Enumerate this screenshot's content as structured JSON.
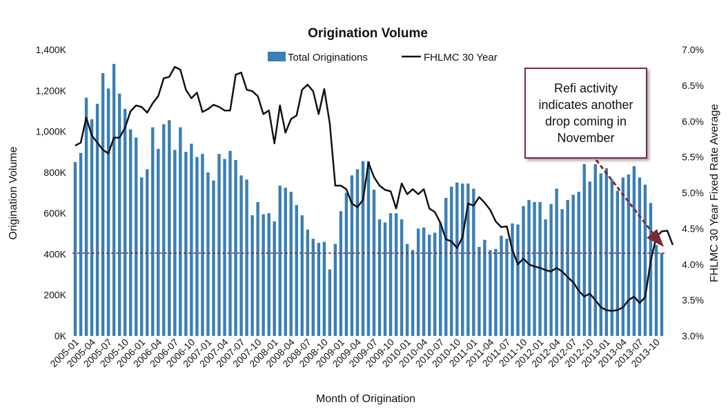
{
  "chart_data": {
    "type": "bar",
    "title": "Origination Volume",
    "xlabel": "Month of Origination",
    "ylabel": "Origination Volume",
    "y2label": "FHLMC 30 Year Fixed  Rate Average",
    "ylim": [
      0,
      1400
    ],
    "y2lim": [
      3.0,
      7.0
    ],
    "yticks": [
      "0K",
      "200K",
      "400K",
      "600K",
      "800K",
      "1,000K",
      "1,200K",
      "1,400K"
    ],
    "y2ticks": [
      "3.0%",
      "3.5%",
      "4.0%",
      "4.5%",
      "5.0%",
      "5.5%",
      "6.0%",
      "6.5%",
      "7.0%"
    ],
    "x_tick_labels": [
      "2005-01",
      "2005-04",
      "2005-07",
      "2005-10",
      "2006-01",
      "2006-04",
      "2006-07",
      "2006-10",
      "2007-01",
      "2007-04",
      "2007-07",
      "2007-10",
      "2008-01",
      "2008-04",
      "2008-07",
      "2008-10",
      "2009-01",
      "2009-04",
      "2009-07",
      "2009-10",
      "2010-01",
      "2010-04",
      "2010-07",
      "2010-10",
      "2011-01",
      "2011-04",
      "2011-07",
      "2011-10",
      "2012-01",
      "2012-04",
      "2012-07",
      "2012-10",
      "2013-01",
      "2013-04",
      "2013-07",
      "2013-10"
    ],
    "legend_position": "top-center",
    "series": [
      {
        "name": "Total Originations",
        "kind": "bar",
        "color": "#3a7fb5",
        "values": [
          850,
          895,
          1165,
          1060,
          1135,
          1285,
          1210,
          1330,
          1185,
          1110,
          1010,
          970,
          775,
          815,
          1020,
          915,
          1035,
          1055,
          910,
          1020,
          900,
          940,
          875,
          890,
          800,
          760,
          890,
          865,
          905,
          860,
          785,
          765,
          590,
          655,
          595,
          600,
          560,
          735,
          725,
          705,
          640,
          590,
          520,
          475,
          455,
          460,
          325,
          450,
          610,
          700,
          785,
          815,
          855,
          855,
          715,
          570,
          555,
          600,
          600,
          570,
          450,
          420,
          525,
          530,
          495,
          505,
          555,
          675,
          730,
          750,
          745,
          745,
          720,
          435,
          470,
          420,
          425,
          490,
          475,
          550,
          545,
          635,
          665,
          655,
          655,
          570,
          645,
          720,
          620,
          665,
          690,
          705,
          840,
          755,
          840,
          795,
          820,
          765,
          710,
          775,
          790,
          830,
          775,
          740,
          650,
          445,
          405
        ],
        "labels_on_bars": false
      },
      {
        "name": "FHLMC 30 Year",
        "kind": "line",
        "axis": "right",
        "color": "#111111",
        "values": [
          5.66,
          5.7,
          6.05,
          5.8,
          5.7,
          5.6,
          5.55,
          5.77,
          5.77,
          5.91,
          6.14,
          6.22,
          6.2,
          6.12,
          6.25,
          6.35,
          6.6,
          6.62,
          6.76,
          6.72,
          6.44,
          6.32,
          6.4,
          6.13,
          6.17,
          6.23,
          6.2,
          6.15,
          6.15,
          6.65,
          6.68,
          6.44,
          6.42,
          6.35,
          6.1,
          6.15,
          5.69,
          6.22,
          5.84,
          6.03,
          6.08,
          6.44,
          6.51,
          6.42,
          6.1,
          6.45,
          5.97,
          5.1,
          5.1,
          5.05,
          4.85,
          4.8,
          4.9,
          5.42,
          5.22,
          5.1,
          5.04,
          5.02,
          4.78,
          5.13,
          4.98,
          5.05,
          4.98,
          5.05,
          4.78,
          4.73,
          4.58,
          4.35,
          4.32,
          4.23,
          4.38,
          4.85,
          4.82,
          4.94,
          4.86,
          4.76,
          4.6,
          4.52,
          4.53,
          4.2,
          4.0,
          4.08,
          4.0,
          3.97,
          3.95,
          3.92,
          3.9,
          3.95,
          3.9,
          3.82,
          3.75,
          3.63,
          3.55,
          3.59,
          3.5,
          3.4,
          3.36,
          3.35,
          3.36,
          3.4,
          3.5,
          3.55,
          3.46,
          3.54,
          4.05,
          4.38,
          4.46,
          4.47,
          4.27
        ]
      }
    ],
    "reference_line": {
      "axis": "left",
      "value": 405,
      "style": "dashed",
      "color": "#7b2a33"
    },
    "annotation": {
      "text": "Refi activity indicates another drop coming in November",
      "arrow_color": "#7b2a33"
    }
  }
}
